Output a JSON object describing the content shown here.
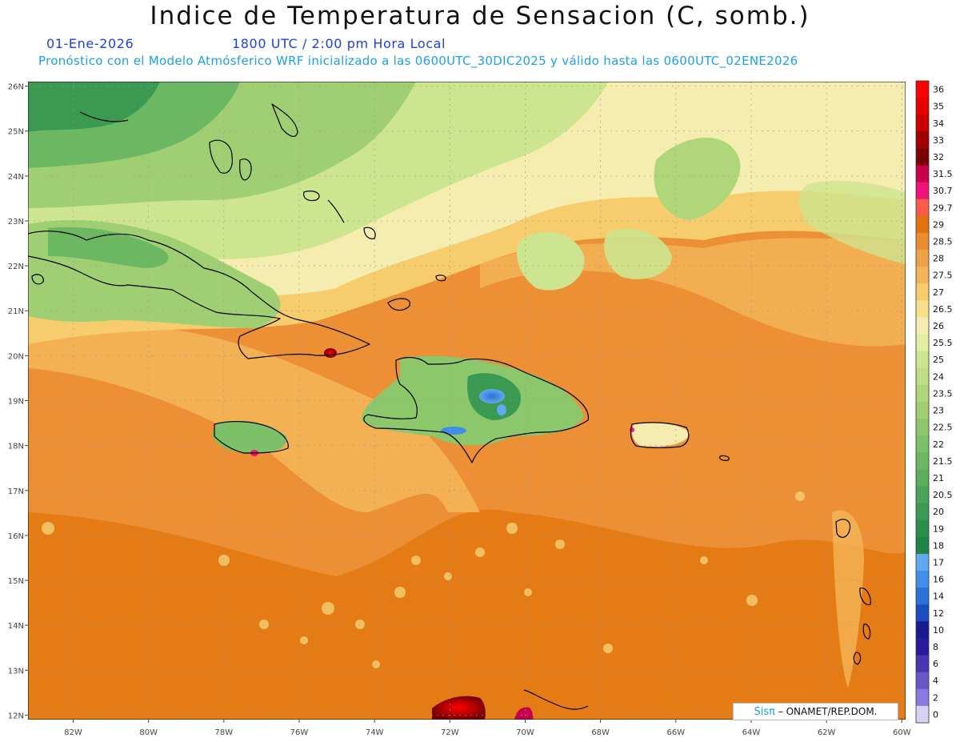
{
  "header": {
    "title": "Indice de Temperatura de Sensacion (C, somb.)",
    "date": "01-Ene-2026",
    "time": "1800 UTC / 2:00 pm Hora Local",
    "model_info": "Pronóstico con el Modelo Atmósferico WRF inicializado a las 0600UTC_30DIC2025 y válido hasta las  0600UTC_02ENE2026"
  },
  "map": {
    "lon_range": [
      -83.2,
      -59.9
    ],
    "lat_range": [
      11.9,
      26.1
    ],
    "lon_ticks": [
      {
        "value": -82,
        "label": "82W"
      },
      {
        "value": -80,
        "label": "80W"
      },
      {
        "value": -78,
        "label": "78W"
      },
      {
        "value": -76,
        "label": "76W"
      },
      {
        "value": -74,
        "label": "74W"
      },
      {
        "value": -72,
        "label": "72W"
      },
      {
        "value": -70,
        "label": "70W"
      },
      {
        "value": -68,
        "label": "68W"
      },
      {
        "value": -66,
        "label": "66W"
      },
      {
        "value": -64,
        "label": "64W"
      },
      {
        "value": -62,
        "label": "62W"
      },
      {
        "value": -60,
        "label": "60W"
      }
    ],
    "lat_ticks": [
      {
        "value": 26,
        "label": "26N"
      },
      {
        "value": 25,
        "label": "25N"
      },
      {
        "value": 24,
        "label": "24N"
      },
      {
        "value": 23,
        "label": "23N"
      },
      {
        "value": 22,
        "label": "22N"
      },
      {
        "value": 21,
        "label": "21N"
      },
      {
        "value": 20,
        "label": "20N"
      },
      {
        "value": 19,
        "label": "19N"
      },
      {
        "value": 18,
        "label": "18N"
      },
      {
        "value": 17,
        "label": "17N"
      },
      {
        "value": 16,
        "label": "16N"
      },
      {
        "value": 15,
        "label": "15N"
      },
      {
        "value": 14,
        "label": "14N"
      },
      {
        "value": 13,
        "label": "13N"
      },
      {
        "value": 12,
        "label": "12N"
      }
    ],
    "grid": true,
    "ocean_color": "#ec8f35",
    "coastline_color": "#000000"
  },
  "colorbar": {
    "labels": [
      "36",
      "35",
      "34",
      "33",
      "32",
      "31.5",
      "30.7",
      "29.7",
      "29",
      "28.5",
      "28",
      "27.5",
      "27",
      "26.5",
      "26",
      "25.5",
      "25",
      "24",
      "23.5",
      "23",
      "22.5",
      "22",
      "21.5",
      "21",
      "20.5",
      "20",
      "19",
      "18",
      "17",
      "16",
      "14",
      "12",
      "10",
      "8",
      "6",
      "4",
      "2",
      "0"
    ],
    "colors": [
      "#ff0000",
      "#e60000",
      "#c80000",
      "#a00000",
      "#7a0000",
      "#c8004a",
      "#f0147a",
      "#ff5a4a",
      "#e2720e",
      "#ea8c32",
      "#efa048",
      "#f4b558",
      "#f6cc6c",
      "#f8df8a",
      "#f5ecb0",
      "#e3eea0",
      "#cde58e",
      "#bfdf84",
      "#afd77a",
      "#9fcf72",
      "#8cc86b",
      "#7cc067",
      "#6cb862",
      "#5aae5c",
      "#48a457",
      "#3a9a52",
      "#2a8e4c",
      "#1e8446",
      "#60a8ef",
      "#3f8fe8",
      "#2a72d8",
      "#1a4ec0",
      "#1a1a90",
      "#2c1a9e",
      "#4a36b0",
      "#6a56c8",
      "#8a7ae0",
      "#d6d2f6"
    ]
  },
  "credit": {
    "logo": "Sisπ",
    "text": " – ONAMET/REP.DOM."
  }
}
